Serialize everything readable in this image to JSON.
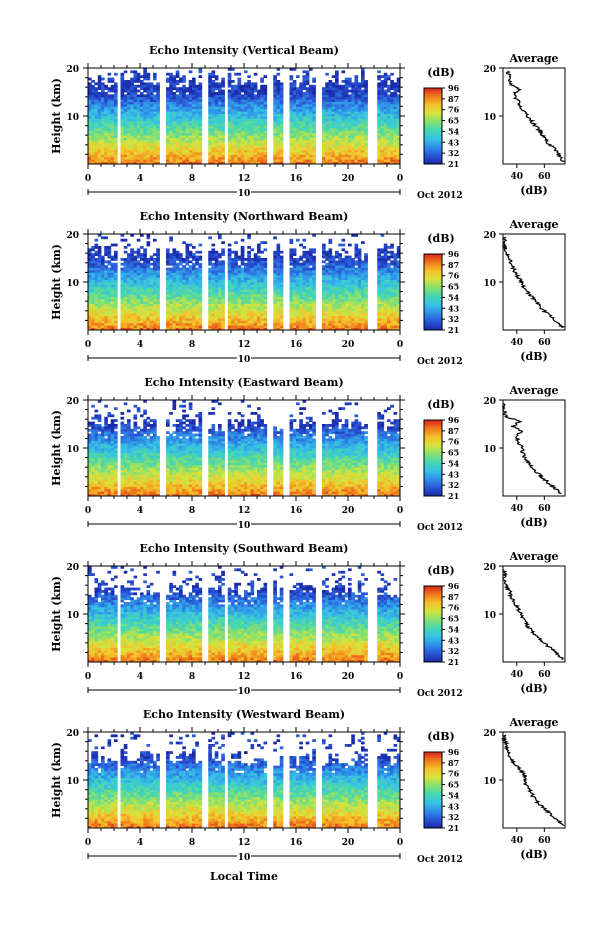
{
  "shared": {
    "ylabel": "Height (km)",
    "ylim": [
      0,
      20
    ],
    "y_ticks": [
      "20",
      "10"
    ],
    "xlim": [
      0,
      24
    ],
    "x_ticks": [
      "0",
      "4",
      "8",
      "12",
      "16",
      "20",
      "0"
    ],
    "day_label": "10",
    "month_label": "Oct 2012",
    "cbar_unit": "(dB)",
    "cbar_ticks": [
      "96",
      "87",
      "76",
      "65",
      "54",
      "43",
      "32",
      "21"
    ],
    "avg_title": "Average",
    "avg_unit": "(dB)",
    "avg_y_ticks": [
      "20",
      "10"
    ],
    "xlabel": "Local Time",
    "colormap": [
      "#1a2aa8",
      "#2a55d6",
      "#2f8fe8",
      "#36c2e6",
      "#46d6b0",
      "#86e070",
      "#d6e43c",
      "#f5c02a",
      "#f07a1c",
      "#d8241c"
    ]
  },
  "panels": [
    {
      "title": "Echo Intensity (Vertical Beam)",
      "avg_x_ticks": [
        "40",
        "60"
      ],
      "chart_data": {
        "type": "heatmap",
        "title": "Echo Intensity (Vertical Beam)",
        "x_range": [
          0,
          24
        ],
        "y_range": [
          0,
          20
        ],
        "value_range": [
          21,
          96
        ],
        "data_gaps_hours": [
          [
            2.2,
            2.6
          ],
          [
            5.6,
            6.1
          ],
          [
            8.8,
            9.2
          ],
          [
            10.4,
            10.8
          ],
          [
            13.7,
            14.3
          ],
          [
            15.1,
            15.5
          ],
          [
            17.6,
            18.0
          ],
          [
            21.4,
            22.3
          ]
        ],
        "echo_top_km": 19.5,
        "average_profile": {
          "x_range": [
            30,
            75
          ],
          "height_km": [
            1,
            2,
            3,
            4,
            5,
            6,
            7,
            8,
            9,
            10,
            11,
            12,
            13,
            14,
            15,
            16,
            17,
            18,
            19
          ],
          "db": [
            74,
            72,
            69,
            66,
            62,
            60,
            58,
            55,
            52,
            49,
            46,
            44,
            42,
            40,
            38,
            42,
            36,
            35,
            34
          ]
        }
      }
    },
    {
      "title": "Echo Intensity (Northward Beam)",
      "avg_x_ticks": [
        "40",
        "60"
      ],
      "chart_data": {
        "type": "heatmap",
        "title": "Echo Intensity (Northward Beam)",
        "x_range": [
          0,
          24
        ],
        "y_range": [
          0,
          20
        ],
        "value_range": [
          21,
          96
        ],
        "data_gaps_hours": [
          [
            2.2,
            2.6
          ],
          [
            5.6,
            6.1
          ],
          [
            8.8,
            9.2
          ],
          [
            10.4,
            10.8
          ],
          [
            13.7,
            14.3
          ],
          [
            15.1,
            15.5
          ],
          [
            17.6,
            18.0
          ],
          [
            21.4,
            22.3
          ]
        ],
        "echo_top_km": 18.0,
        "average_profile": {
          "x_range": [
            30,
            75
          ],
          "height_km": [
            1,
            2,
            3,
            4,
            5,
            6,
            7,
            8,
            9,
            10,
            11,
            12,
            13,
            14,
            15,
            16,
            17,
            18,
            19
          ],
          "db": [
            73,
            70,
            66,
            62,
            58,
            55,
            52,
            49,
            46,
            44,
            42,
            40,
            38,
            36,
            35,
            33,
            32,
            31,
            31
          ]
        }
      }
    },
    {
      "title": "Echo Intensity (Eastward Beam)",
      "avg_x_ticks": [
        "40",
        "60"
      ],
      "chart_data": {
        "type": "heatmap",
        "title": "Echo Intensity (Eastward Beam)",
        "x_range": [
          0,
          24
        ],
        "y_range": [
          0,
          20
        ],
        "value_range": [
          21,
          96
        ],
        "data_gaps_hours": [
          [
            2.2,
            2.6
          ],
          [
            5.6,
            6.1
          ],
          [
            8.8,
            9.2
          ],
          [
            10.4,
            10.8
          ],
          [
            13.7,
            14.3
          ],
          [
            15.1,
            15.5
          ],
          [
            17.6,
            18.0
          ],
          [
            21.4,
            22.3
          ]
        ],
        "echo_top_km": 17.0,
        "average_profile": {
          "x_range": [
            30,
            75
          ],
          "height_km": [
            1,
            2,
            3,
            4,
            5,
            6,
            7,
            8,
            9,
            10,
            11,
            12,
            13,
            14,
            15,
            16,
            17,
            18,
            19
          ],
          "db": [
            72,
            68,
            64,
            60,
            56,
            53,
            50,
            47,
            45,
            44,
            43,
            41,
            40,
            44,
            37,
            42,
            33,
            31,
            30
          ]
        }
      }
    },
    {
      "title": "Echo Intensity (Southward Beam)",
      "avg_x_ticks": [
        "40",
        "60"
      ],
      "chart_data": {
        "type": "heatmap",
        "title": "Echo Intensity (Southward Beam)",
        "x_range": [
          0,
          24
        ],
        "y_range": [
          0,
          20
        ],
        "value_range": [
          21,
          96
        ],
        "data_gaps_hours": [
          [
            2.2,
            2.6
          ],
          [
            5.6,
            6.1
          ],
          [
            8.8,
            9.2
          ],
          [
            10.4,
            10.8
          ],
          [
            13.7,
            14.3
          ],
          [
            15.1,
            15.5
          ],
          [
            17.6,
            18.0
          ],
          [
            21.4,
            22.3
          ]
        ],
        "echo_top_km": 17.0,
        "average_profile": {
          "x_range": [
            30,
            75
          ],
          "height_km": [
            1,
            2,
            3,
            4,
            5,
            6,
            7,
            8,
            9,
            10,
            11,
            12,
            13,
            14,
            15,
            16,
            17,
            18,
            19
          ],
          "db": [
            73,
            70,
            66,
            62,
            58,
            54,
            51,
            48,
            46,
            44,
            42,
            40,
            38,
            36,
            35,
            33,
            32,
            31,
            31
          ]
        }
      }
    },
    {
      "title": "Echo Intensity (Westward Beam)",
      "avg_x_ticks": [
        "40",
        "60"
      ],
      "chart_data": {
        "type": "heatmap",
        "title": "Echo Intensity (Westward Beam)",
        "x_range": [
          0,
          24
        ],
        "y_range": [
          0,
          20
        ],
        "value_range": [
          21,
          96
        ],
        "data_gaps_hours": [
          [
            2.2,
            2.6
          ],
          [
            5.6,
            6.1
          ],
          [
            8.8,
            9.2
          ],
          [
            10.4,
            10.8
          ],
          [
            13.7,
            14.3
          ],
          [
            15.1,
            15.5
          ],
          [
            17.6,
            18.0
          ],
          [
            21.4,
            22.3
          ]
        ],
        "echo_top_km": 16.5,
        "average_profile": {
          "x_range": [
            30,
            75
          ],
          "height_km": [
            1,
            2,
            3,
            4,
            5,
            6,
            7,
            8,
            9,
            10,
            11,
            12,
            13,
            14,
            15,
            16,
            17,
            18,
            19
          ],
          "db": [
            73,
            70,
            66,
            62,
            58,
            55,
            52,
            50,
            48,
            46,
            47,
            44,
            42,
            38,
            36,
            34,
            33,
            32,
            31
          ]
        }
      }
    }
  ]
}
